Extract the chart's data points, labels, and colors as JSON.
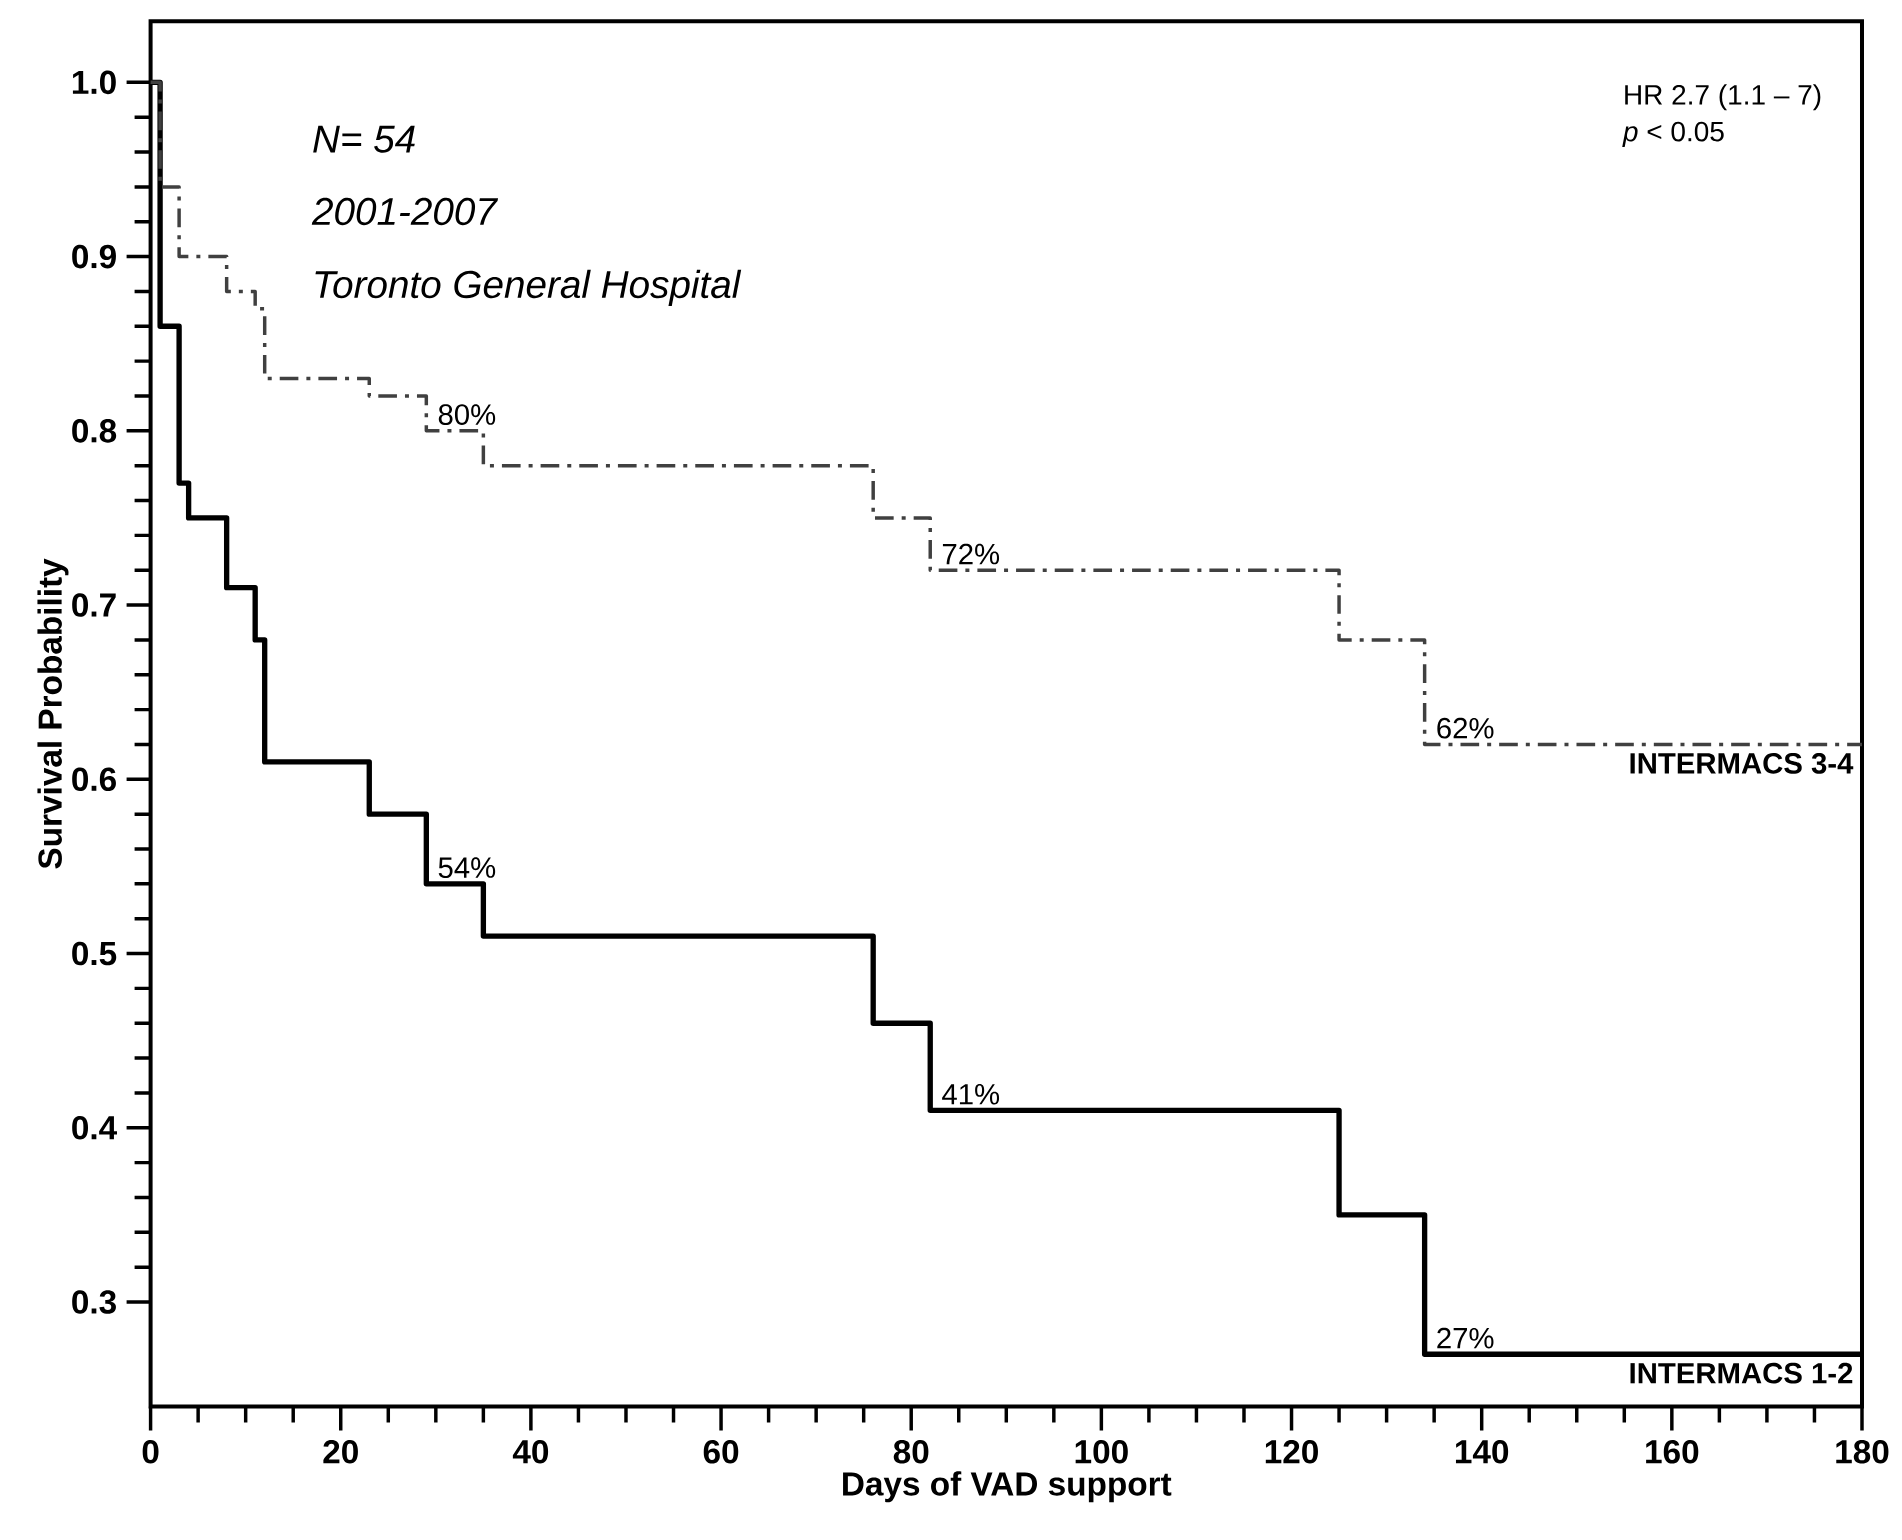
{
  "chart_data": {
    "type": "step",
    "xlabel": "Days of VAD support",
    "ylabel": "Survival Probability",
    "xlim": [
      0,
      180
    ],
    "ylim": [
      0.24,
      1.035
    ],
    "xticks": [
      0,
      20,
      40,
      60,
      80,
      100,
      120,
      140,
      160,
      180
    ],
    "yticks": [
      {
        "value": 0.3,
        "label": "0.3"
      },
      {
        "value": 0.4,
        "label": "0.4"
      },
      {
        "value": 0.5,
        "label": "0.5"
      },
      {
        "value": 0.6,
        "label": "0.6"
      },
      {
        "value": 0.7,
        "label": "0.7"
      },
      {
        "value": 0.8,
        "label": "0.8"
      },
      {
        "value": 0.9,
        "label": "0.9"
      },
      {
        "value": 1.0,
        "label": "1.0"
      }
    ],
    "series": [
      {
        "name": "INTERMACS 1-2",
        "color": "#000000",
        "line_style": "solid",
        "x": [
          0,
          1,
          3,
          4,
          8,
          11,
          12,
          23,
          29,
          35,
          76,
          82,
          125,
          134,
          180
        ],
        "values": [
          1.0,
          0.86,
          0.77,
          0.75,
          0.71,
          0.68,
          0.61,
          0.58,
          0.54,
          0.51,
          0.46,
          0.41,
          0.35,
          0.27,
          0.27
        ],
        "value_labels": [
          null,
          null,
          null,
          null,
          null,
          null,
          null,
          null,
          "54%",
          null,
          null,
          "41%",
          null,
          "27%",
          null
        ]
      },
      {
        "name": "INTERMACS 3-4",
        "color": "#404040",
        "line_style": "dashed",
        "x": [
          0,
          1,
          3,
          8,
          11,
          12,
          23,
          29,
          35,
          76,
          82,
          125,
          134,
          180
        ],
        "values": [
          1.0,
          0.94,
          0.9,
          0.88,
          0.87,
          0.83,
          0.82,
          0.8,
          0.78,
          0.75,
          0.72,
          0.68,
          0.62,
          0.62
        ],
        "value_labels": [
          null,
          null,
          null,
          null,
          null,
          null,
          null,
          "80%",
          null,
          null,
          "72%",
          null,
          "62%",
          null
        ]
      }
    ],
    "annotations": [
      "N= 54",
      "2001-2007",
      "Toronto General Hospital",
      "HR 2.7 (1.1 – 7)",
      "*p* < 0.05"
    ],
    "marker": "none",
    "legend": false,
    "grid": false
  }
}
